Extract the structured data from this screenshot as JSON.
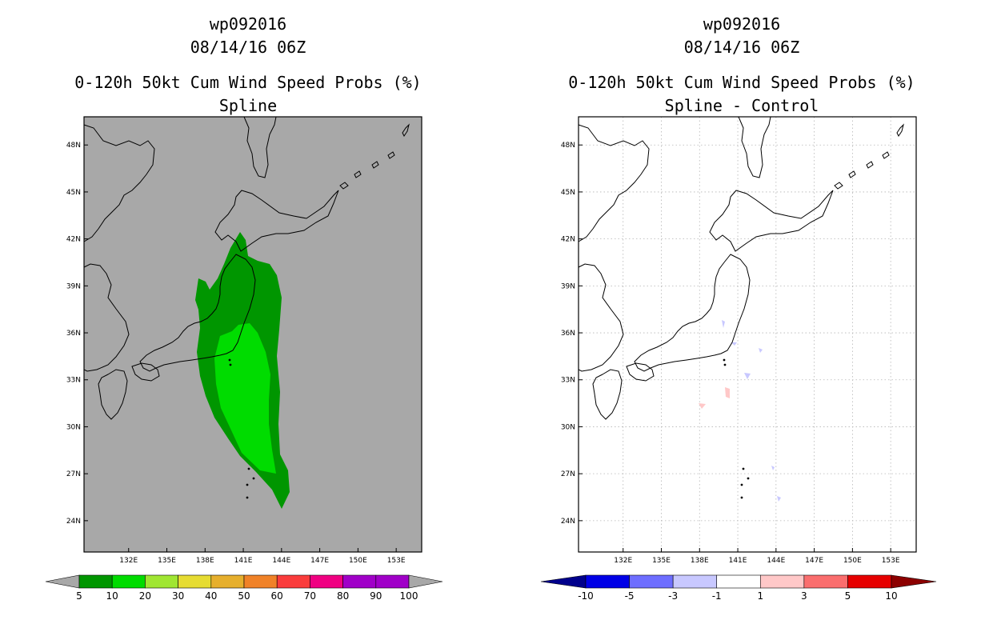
{
  "chart_data": [
    {
      "type": "heatmap",
      "title_lines": [
        "wp092016",
        "08/14/16 06Z",
        "0-120h 50kt Cum Wind Speed Probs (%)",
        "Spline"
      ],
      "x_ticks": [
        "132E",
        "135E",
        "138E",
        "141E",
        "144E",
        "147E",
        "150E",
        "153E"
      ],
      "y_ticks": [
        "48N",
        "45N",
        "42N",
        "39N",
        "36N",
        "33N",
        "30N",
        "27N",
        "24N"
      ],
      "lon_range": [
        128.5,
        155.0
      ],
      "lat_range": [
        22.0,
        49.8
      ],
      "background": "#a8a8a8",
      "grid": false,
      "colorbar": {
        "labels": [
          "5",
          "10",
          "20",
          "30",
          "40",
          "50",
          "60",
          "70",
          "80",
          "90",
          "100"
        ],
        "colors": [
          "#009600",
          "#00dc00",
          "#a0e632",
          "#e6dc32",
          "#e6af2d",
          "#f08228",
          "#fa3c3c",
          "#f00082",
          "#a000c8",
          "#a000c8"
        ],
        "end_colors": [
          "#a8a8a8",
          "#a8a8a8"
        ]
      },
      "contours": [
        {
          "level": "5-10",
          "color": "#009600"
        },
        {
          "level": "10-20",
          "color": "#00dc00"
        }
      ]
    },
    {
      "type": "heatmap",
      "title_lines": [
        "wp092016",
        "08/14/16 06Z",
        "0-120h 50kt Cum Wind Speed Probs (%)",
        "Spline - Control"
      ],
      "x_ticks": [
        "132E",
        "135E",
        "138E",
        "141E",
        "144E",
        "147E",
        "150E",
        "153E"
      ],
      "y_ticks": [
        "48N",
        "45N",
        "42N",
        "39N",
        "36N",
        "33N",
        "30N",
        "27N",
        "24N"
      ],
      "lon_range": [
        128.5,
        155.0
      ],
      "lat_range": [
        22.0,
        49.8
      ],
      "background": "#ffffff",
      "grid": true,
      "colorbar": {
        "labels": [
          "-10",
          "-5",
          "-3",
          "-1",
          "1",
          "3",
          "5",
          "10"
        ],
        "colors": [
          "#0000e6",
          "#6e6eff",
          "#c8c8ff",
          "#ffffff",
          "#ffc8c8",
          "#fa6e6e",
          "#e60000"
        ],
        "end_colors": [
          "#00008c",
          "#8c0000"
        ]
      },
      "contours": [
        {
          "level": "-3 to -1",
          "color": "#c8c8ff"
        },
        {
          "level": "1 to 3",
          "color": "#ffc8c8"
        }
      ]
    }
  ]
}
